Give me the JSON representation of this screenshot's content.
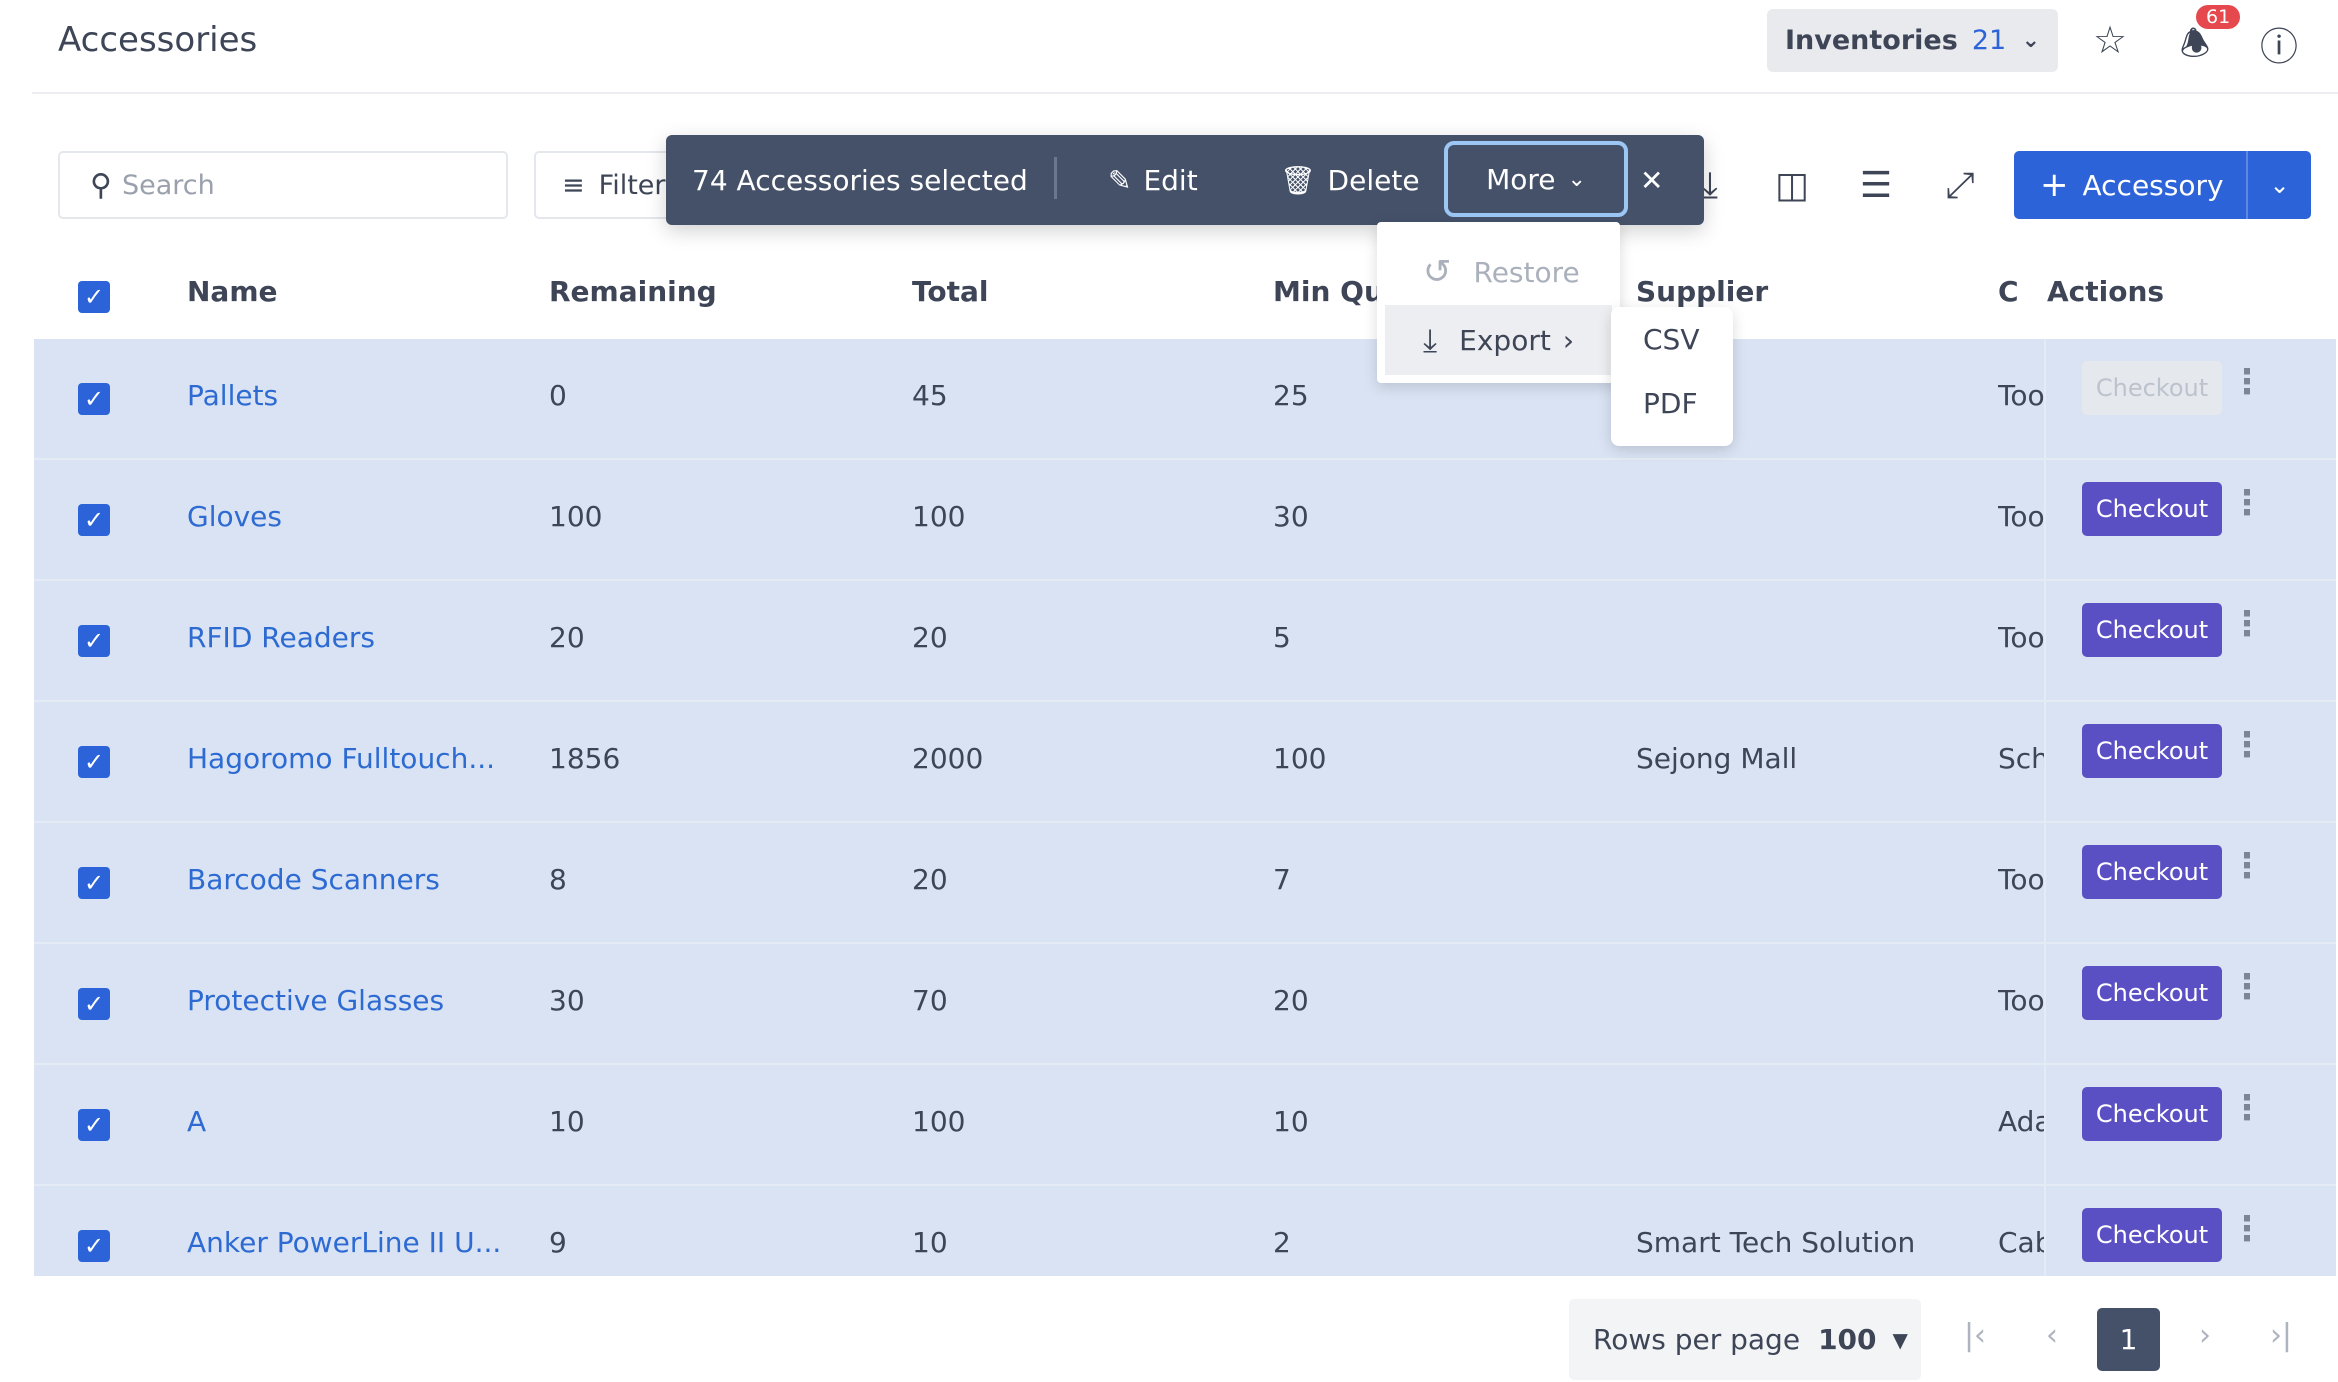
{
  "header": {
    "title": "Accessories",
    "inventories_label": "Inventories",
    "inventories_count": "21",
    "notification_count": "61"
  },
  "toolbar": {
    "search_placeholder": "Search",
    "filter_label": "Filters",
    "add_label": "Accessory"
  },
  "bulk": {
    "selected_text": "74 Accessories selected",
    "edit": "Edit",
    "delete": "Delete",
    "more": "More"
  },
  "more_menu": {
    "restore": "Restore",
    "export": "Export",
    "export_options": [
      "CSV",
      "PDF"
    ]
  },
  "table": {
    "columns": [
      "Name",
      "Remaining",
      "Total",
      "Min Qty",
      "Supplier",
      "Category",
      "Actions"
    ],
    "header_visible": {
      "min_qty": "Min Qu",
      "category": "C"
    },
    "checkout_label": "Checkout",
    "rows": [
      {
        "name": "Pallets",
        "remaining": "0",
        "total": "45",
        "min_qty": "25",
        "supplier": "",
        "category": "Tools",
        "checkout_enabled": false
      },
      {
        "name": "Gloves",
        "remaining": "100",
        "total": "100",
        "min_qty": "30",
        "supplier": "",
        "category": "Tools",
        "checkout_enabled": true
      },
      {
        "name": "RFID Readers",
        "remaining": "20",
        "total": "20",
        "min_qty": "5",
        "supplier": "",
        "category": "Tools",
        "checkout_enabled": true
      },
      {
        "name": "Hagoromo Fulltouch...",
        "remaining": "1856",
        "total": "2000",
        "min_qty": "100",
        "supplier": "Sejong Mall",
        "category": "School supplies",
        "checkout_enabled": true
      },
      {
        "name": "Barcode Scanners",
        "remaining": "8",
        "total": "20",
        "min_qty": "7",
        "supplier": "",
        "category": "Tools",
        "checkout_enabled": true
      },
      {
        "name": "Protective Glasses",
        "remaining": "30",
        "total": "70",
        "min_qty": "20",
        "supplier": "",
        "category": "Tools",
        "checkout_enabled": true
      },
      {
        "name": "A",
        "remaining": "10",
        "total": "100",
        "min_qty": "10",
        "supplier": "",
        "category": "Adapters",
        "checkout_enabled": true
      },
      {
        "name": "Anker PowerLine II U...",
        "remaining": "9",
        "total": "10",
        "min_qty": "2",
        "supplier": "Smart Tech Solution",
        "category": "Cables",
        "checkout_enabled": true
      }
    ]
  },
  "pagination": {
    "rows_per_page_label": "Rows per page",
    "rows_per_page": "100",
    "current_page": "1"
  },
  "colors": {
    "primary": "#2d63d8",
    "checkout": "#5b4fc4",
    "row_selected": "#d9e3f3",
    "toolbar": "#455169",
    "badge": "#e5484d"
  }
}
